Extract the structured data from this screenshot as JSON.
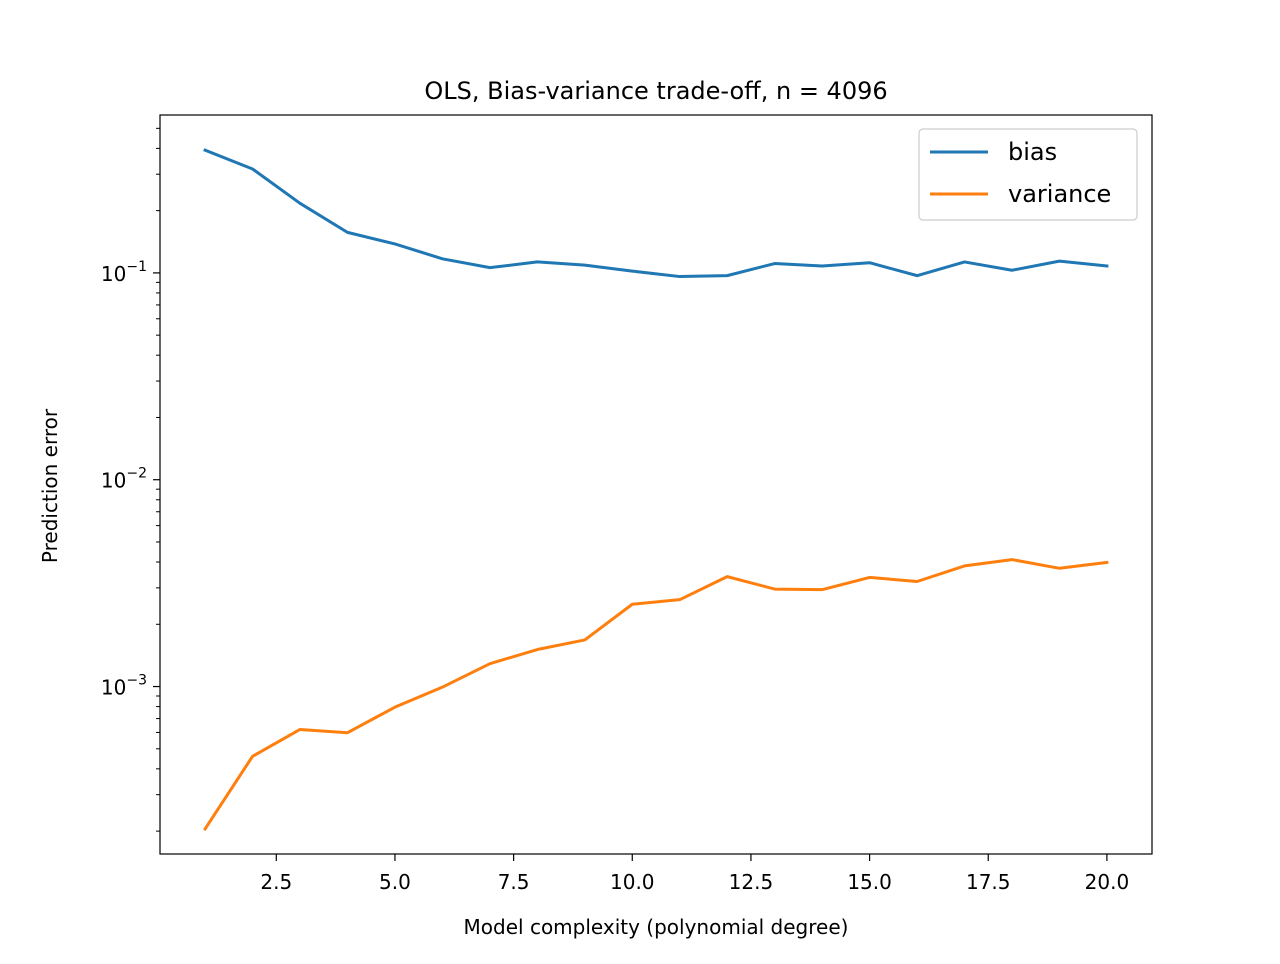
{
  "chart_data": {
    "type": "line",
    "title": "OLS, Bias-variance trade-off, n = 4096",
    "xlabel": "Model complexity (polynomial degree)",
    "ylabel": "Prediction error",
    "yscale": "log",
    "xlim": [
      0.05,
      20.95
    ],
    "ylim": [
      0.000155,
      0.58
    ],
    "xticks": [
      2.5,
      5.0,
      7.5,
      10.0,
      12.5,
      15.0,
      17.5,
      20.0
    ],
    "xtick_labels": [
      "2.5",
      "5.0",
      "7.5",
      "10.0",
      "12.5",
      "15.0",
      "17.5",
      "20.0"
    ],
    "yticks": [
      0.001,
      0.01,
      0.1
    ],
    "ytick_labels": [
      {
        "base": "10",
        "exp": "−3"
      },
      {
        "base": "10",
        "exp": "−2"
      },
      {
        "base": "10",
        "exp": "−1"
      }
    ],
    "grid": false,
    "legend_position": "upper right",
    "x": [
      1,
      2,
      3,
      4,
      5,
      6,
      7,
      8,
      9,
      10,
      11,
      12,
      13,
      14,
      15,
      16,
      17,
      18,
      19,
      20
    ],
    "series": [
      {
        "name": "bias",
        "color": "#1f77b4",
        "values": [
          0.392,
          0.318,
          0.217,
          0.157,
          0.138,
          0.117,
          0.106,
          0.113,
          0.109,
          0.102,
          0.096,
          0.097,
          0.111,
          0.108,
          0.112,
          0.097,
          0.113,
          0.103,
          0.114,
          0.108
        ]
      },
      {
        "name": "variance",
        "color": "#ff7f0e",
        "values": [
          0.000205,
          0.00046,
          0.00062,
          0.000598,
          0.000795,
          0.000993,
          0.00129,
          0.00151,
          0.00168,
          0.0025,
          0.00263,
          0.0034,
          0.00296,
          0.00294,
          0.00337,
          0.00322,
          0.00383,
          0.00411,
          0.00373,
          0.00398
        ]
      }
    ]
  }
}
